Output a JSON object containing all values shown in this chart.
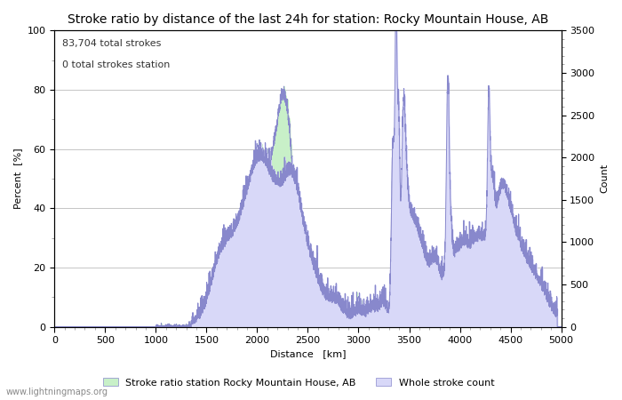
{
  "title": "Stroke ratio by distance of the last 24h for station: Rocky Mountain House, AB",
  "xlabel": "Distance   [km]",
  "ylabel_left": "Percent  [%]",
  "ylabel_right": "Count",
  "annotation_line1": "83,704 total strokes",
  "annotation_line2": "0 total strokes station",
  "xlim": [
    0,
    5000
  ],
  "ylim_left": [
    0,
    100
  ],
  "ylim_right": [
    0,
    3500
  ],
  "xticks": [
    0,
    500,
    1000,
    1500,
    2000,
    2500,
    3000,
    3500,
    4000,
    4500,
    5000
  ],
  "yticks_left": [
    0,
    20,
    40,
    60,
    80,
    100
  ],
  "yticks_right": [
    0,
    500,
    1000,
    1500,
    2000,
    2500,
    3000,
    3500
  ],
  "legend_label_green": "Stroke ratio station Rocky Mountain House, AB",
  "legend_label_blue": "Whole stroke count",
  "fill_green_color": "#c8f0c8",
  "fill_blue_color": "#d8d8f8",
  "line_color": "#8888cc",
  "watermark": "www.lightningmaps.org",
  "bg_color": "#ffffff",
  "grid_color": "#bbbbbb",
  "title_fontsize": 10,
  "label_fontsize": 8,
  "tick_fontsize": 8,
  "annotation_fontsize": 8
}
